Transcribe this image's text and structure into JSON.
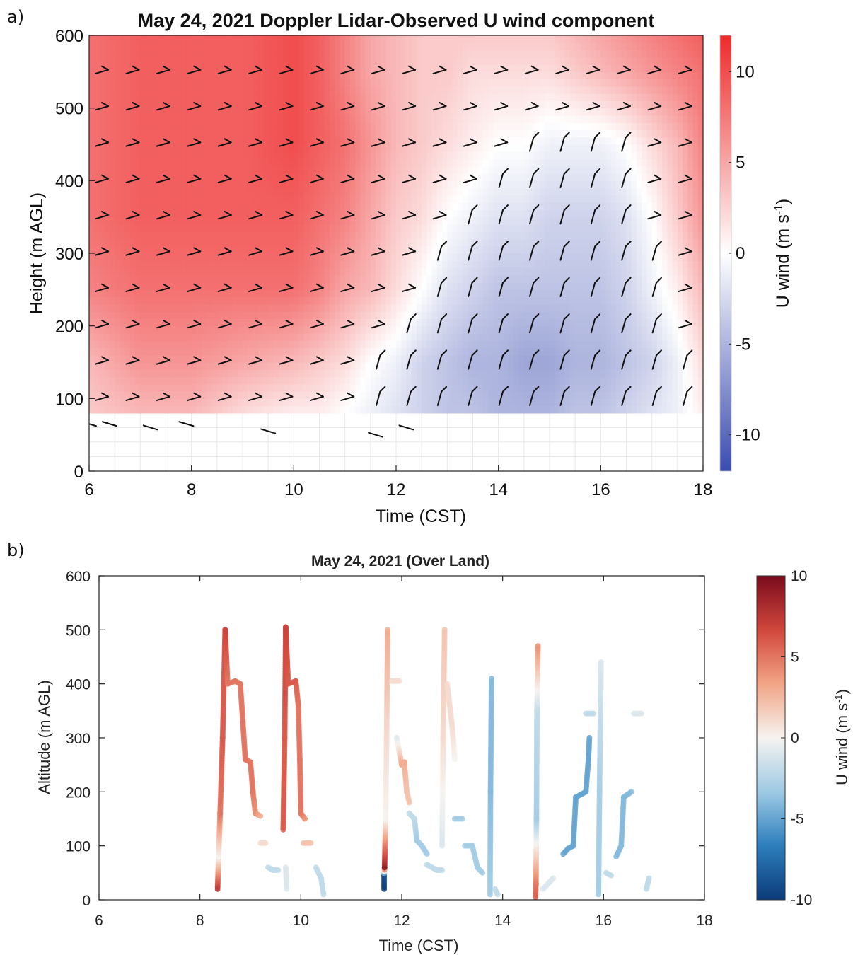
{
  "panels": {
    "a": {
      "letter": "a)"
    },
    "b": {
      "letter": "b)"
    }
  },
  "chart_data": [
    {
      "type": "heatmap",
      "title": "May 24, 2021 Doppler Lidar-Observed U wind component",
      "xlabel": "Time (CST)",
      "ylabel": "Height (m AGL)",
      "xlim": [
        6,
        18
      ],
      "ylim": [
        0,
        600
      ],
      "x_ticks": [
        6,
        8,
        10,
        12,
        14,
        16,
        18
      ],
      "y_ticks": [
        0,
        100,
        200,
        300,
        400,
        500,
        600
      ],
      "colorbar": {
        "label": "U wind (m s",
        "label_exponent": "-1",
        "label_close": ")",
        "range": [
          -12,
          12
        ],
        "ticks": [
          -10,
          -5,
          0,
          5,
          10
        ],
        "colors": {
          "negative": "#3b4cb0",
          "zero": "#ffffff",
          "positive": "#ee2a2a"
        }
      },
      "bottom_data_height": 80,
      "u_field": {
        "times": [
          6,
          7,
          8,
          9,
          10,
          10.5,
          11,
          11.5,
          12,
          12.5,
          13,
          13.5,
          14,
          14.5,
          15,
          15.5,
          16,
          16.5,
          17,
          17.5,
          18
        ],
        "heights": [
          80,
          150,
          250,
          350,
          450,
          550,
          600
        ],
        "values": [
          [
            3,
            4,
            4,
            2,
            1,
            1,
            0,
            -1,
            -2,
            -3,
            -4,
            -4,
            -5,
            -5,
            -5,
            -4,
            -4,
            -3,
            -2,
            -1,
            1
          ],
          [
            4,
            6,
            6,
            5,
            4,
            3,
            2,
            0,
            -1,
            -3,
            -4,
            -5,
            -5,
            -6,
            -6,
            -5,
            -5,
            -4,
            -3,
            -1,
            2
          ],
          [
            7,
            8,
            8,
            8,
            8,
            7,
            5,
            4,
            2,
            0,
            -2,
            -3,
            -4,
            -4,
            -4,
            -4,
            -4,
            -3,
            -1,
            1,
            4
          ],
          [
            8,
            9,
            9,
            9,
            9,
            8,
            7,
            5,
            3,
            2,
            0,
            -1,
            -2,
            -2,
            -3,
            -3,
            -3,
            -2,
            0,
            3,
            6
          ],
          [
            8,
            9,
            9,
            9,
            10,
            9,
            8,
            6,
            4,
            3,
            2,
            1,
            0,
            0,
            -1,
            -1,
            -1,
            0,
            2,
            4,
            7
          ],
          [
            8,
            9,
            9,
            9,
            10,
            9,
            7,
            5,
            4,
            3,
            3,
            2,
            2,
            2,
            2,
            3,
            4,
            5,
            6,
            7,
            8
          ],
          [
            8,
            9,
            9,
            9,
            10,
            9,
            7,
            5,
            4,
            3,
            3,
            3,
            3,
            3,
            3,
            4,
            5,
            6,
            7,
            8,
            9
          ]
        ]
      },
      "barb_times": [
        6.25,
        6.85,
        7.45,
        8.05,
        8.65,
        9.25,
        9.85,
        10.45,
        11.05,
        11.65,
        12.25,
        12.85,
        13.45,
        14.05,
        14.65,
        15.25,
        15.85,
        16.45,
        17.05,
        17.65
      ],
      "barb_heights": [
        100,
        150,
        200,
        250,
        300,
        350,
        400,
        450,
        500,
        550
      ],
      "x_samples": {
        "time": [
          6.0,
          6.4,
          7.2,
          7.9,
          9.5,
          11.6,
          12.2
        ],
        "height": [
          65,
          65,
          60,
          65,
          55,
          50,
          60
        ]
      }
    },
    {
      "type": "scatter",
      "title": "May 24, 2021 (Over Land)",
      "xlabel": "Time (CST)",
      "ylabel": "Altitude (m AGL)",
      "xlim": [
        6,
        18
      ],
      "ylim": [
        0,
        600
      ],
      "x_ticks": [
        6,
        8,
        10,
        12,
        14,
        16,
        18
      ],
      "y_ticks": [
        0,
        100,
        200,
        300,
        400,
        500,
        600
      ],
      "colorbar": {
        "label": "U wind (m s",
        "label_exponent": "-1",
        "label_close": ")",
        "range": [
          -10,
          10
        ],
        "ticks": [
          -10,
          -5,
          0,
          5,
          10
        ],
        "colors": [
          "#0b3b7a",
          "#2f7fbd",
          "#9cc9e4",
          "#f6f3f0",
          "#f2a384",
          "#d2483d",
          "#7a0b1c"
        ]
      },
      "tracks": [
        {
          "points": [
            [
              8.35,
              20,
              8
            ],
            [
              8.37,
              80,
              0
            ],
            [
              8.4,
              160,
              5
            ],
            [
              8.45,
              300,
              6
            ],
            [
              8.48,
              420,
              6
            ],
            [
              8.5,
              500,
              7
            ]
          ]
        },
        {
          "points": [
            [
              8.5,
              500,
              7
            ],
            [
              8.55,
              400,
              5
            ],
            [
              8.7,
              405,
              5
            ],
            [
              8.8,
              400,
              5
            ],
            [
              8.85,
              330,
              5
            ],
            [
              8.9,
              260,
              5
            ],
            [
              9.0,
              255,
              5
            ],
            [
              9.05,
              200,
              5
            ],
            [
              9.1,
              160,
              4
            ],
            [
              9.2,
              155,
              3
            ]
          ]
        },
        {
          "points": [
            [
              9.2,
              105,
              1
            ],
            [
              9.3,
              105,
              1
            ]
          ]
        },
        {
          "points": [
            [
              9.35,
              60,
              -2
            ],
            [
              9.45,
              55,
              -2
            ],
            [
              9.55,
              55,
              -2
            ]
          ]
        },
        {
          "points": [
            [
              9.65,
              130,
              6
            ],
            [
              9.68,
              300,
              6
            ],
            [
              9.7,
              505,
              7
            ],
            [
              9.75,
              400,
              6
            ],
            [
              9.9,
              405,
              6
            ],
            [
              9.95,
              360,
              5
            ],
            [
              9.98,
              260,
              5
            ],
            [
              10.0,
              160,
              5
            ],
            [
              10.08,
              150,
              4
            ]
          ]
        },
        {
          "points": [
            [
              9.7,
              60,
              -1
            ],
            [
              9.72,
              20,
              -1
            ]
          ]
        },
        {
          "points": [
            [
              10.05,
              105,
              2
            ],
            [
              10.2,
              105,
              2
            ]
          ]
        },
        {
          "points": [
            [
              10.3,
              60,
              -2
            ],
            [
              10.4,
              40,
              -2
            ],
            [
              10.45,
              10,
              -2
            ]
          ]
        },
        {
          "points": [
            [
              11.65,
              20,
              -10
            ],
            [
              11.65,
              45,
              -9
            ],
            [
              11.66,
              60,
              9
            ],
            [
              11.68,
              150,
              0
            ],
            [
              11.7,
              300,
              1
            ],
            [
              11.72,
              500,
              3
            ]
          ]
        },
        {
          "points": [
            [
              11.8,
              405,
              1
            ],
            [
              11.95,
              405,
              1
            ]
          ]
        },
        {
          "points": [
            [
              11.9,
              300,
              -1
            ],
            [
              12.0,
              250,
              3
            ],
            [
              12.05,
              255,
              3
            ],
            [
              12.1,
              200,
              2
            ],
            [
              12.15,
              180,
              2
            ]
          ]
        },
        {
          "points": [
            [
              12.15,
              160,
              -2
            ],
            [
              12.25,
              150,
              -2
            ],
            [
              12.3,
              110,
              -3
            ],
            [
              12.4,
              100,
              -3
            ],
            [
              12.5,
              85,
              -3
            ]
          ]
        },
        {
          "points": [
            [
              12.5,
              65,
              -2
            ],
            [
              12.7,
              55,
              -2
            ],
            [
              12.8,
              55,
              -2
            ]
          ]
        },
        {
          "points": [
            [
              12.8,
              100,
              -1
            ],
            [
              12.82,
              300,
              1
            ],
            [
              12.85,
              500,
              2
            ]
          ]
        },
        {
          "points": [
            [
              12.9,
              400,
              1
            ],
            [
              13.0,
              320,
              1
            ],
            [
              13.05,
              260,
              0
            ]
          ]
        },
        {
          "points": [
            [
              13.05,
              150,
              -3
            ],
            [
              13.2,
              150,
              -3
            ]
          ]
        },
        {
          "points": [
            [
              13.25,
              100,
              -3
            ],
            [
              13.4,
              100,
              -3
            ],
            [
              13.5,
              60,
              -3
            ],
            [
              13.6,
              50,
              -3
            ]
          ]
        },
        {
          "points": [
            [
              13.75,
              10,
              -3
            ],
            [
              13.76,
              200,
              -4
            ],
            [
              13.78,
              410,
              -4
            ]
          ]
        },
        {
          "points": [
            [
              13.85,
              20,
              -2
            ],
            [
              13.9,
              10,
              -2
            ]
          ]
        },
        {
          "points": [
            [
              14.65,
              5,
              6
            ],
            [
              14.66,
              30,
              5
            ],
            [
              14.67,
              150,
              -3
            ],
            [
              14.68,
              350,
              -2
            ],
            [
              14.7,
              470,
              4
            ]
          ]
        },
        {
          "points": [
            [
              14.8,
              20,
              -1
            ],
            [
              15.0,
              40,
              -1
            ]
          ]
        },
        {
          "points": [
            [
              15.2,
              85,
              -5
            ],
            [
              15.3,
              95,
              -5
            ],
            [
              15.4,
              100,
              -5
            ],
            [
              15.45,
              190,
              -5
            ],
            [
              15.55,
              195,
              -5
            ],
            [
              15.65,
              200,
              -5
            ],
            [
              15.7,
              260,
              -5
            ],
            [
              15.72,
              300,
              -5
            ]
          ]
        },
        {
          "points": [
            [
              15.65,
              345,
              -2
            ],
            [
              15.8,
              345,
              -2
            ]
          ]
        },
        {
          "points": [
            [
              15.9,
              10,
              -3
            ],
            [
              15.92,
              200,
              -3
            ],
            [
              15.95,
              440,
              -1
            ]
          ]
        },
        {
          "points": [
            [
              16.05,
              50,
              -2
            ],
            [
              16.15,
              45,
              -2
            ]
          ]
        },
        {
          "points": [
            [
              16.25,
              80,
              -4
            ],
            [
              16.35,
              100,
              -4
            ],
            [
              16.4,
              190,
              -4
            ],
            [
              16.55,
              200,
              -4
            ]
          ]
        },
        {
          "points": [
            [
              16.6,
              345,
              -1
            ],
            [
              16.75,
              345,
              -1
            ]
          ]
        },
        {
          "points": [
            [
              16.85,
              20,
              -2
            ],
            [
              16.9,
              40,
              -2
            ]
          ]
        }
      ]
    }
  ]
}
